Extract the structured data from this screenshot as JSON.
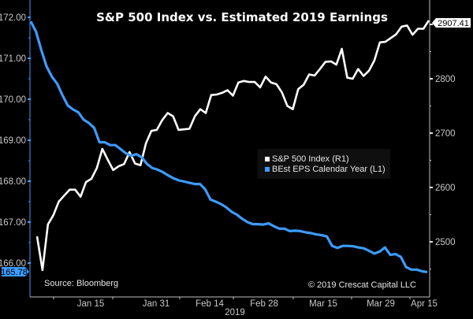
{
  "chart_data": {
    "type": "line",
    "title": "S&P 500 Index vs. Estimated 2019 Earnings",
    "xlabel": "2019",
    "x_ticks": [
      "Jan 15",
      "Jan 31",
      "Feb 14",
      "Feb 28",
      "Mar 15",
      "Mar 29",
      "Apr 15"
    ],
    "left_axis": {
      "ticks": [
        "166.00",
        "167.00",
        "168.00",
        "169.00",
        "170.00",
        "171.00",
        "172.00"
      ],
      "ylim": [
        165.2,
        172.2
      ]
    },
    "right_axis": {
      "ticks": [
        "2500",
        "2600",
        "2700",
        "2800",
        "2900"
      ],
      "ylim": [
        2433,
        2925
      ]
    },
    "legend": {
      "position": "center-right",
      "entries": [
        "S&P 500 Index (R1)",
        "BEst EPS Calendar Year (L1)"
      ]
    },
    "source": "Source: Bloomberg",
    "copyright": "© 2019 Crescat Capital LLC",
    "grid": false,
    "series": [
      {
        "name": "S&P 500 Index (R1)",
        "axis": "right",
        "color": "#ffffff",
        "last_value_label": "2907.41",
        "values": [
          2510,
          2448,
          2532,
          2549,
          2574,
          2585,
          2596,
          2596,
          2583,
          2610,
          2616,
          2636,
          2671,
          2651,
          2632,
          2639,
          2643,
          2665,
          2644,
          2641,
          2681,
          2704,
          2706,
          2724,
          2737,
          2731,
          2706,
          2707,
          2708,
          2731,
          2744,
          2737,
          2770,
          2771,
          2774,
          2779,
          2769,
          2793,
          2796,
          2794,
          2794,
          2784,
          2804,
          2793,
          2790,
          2775,
          2750,
          2744,
          2781,
          2789,
          2808,
          2806,
          2818,
          2831,
          2832,
          2826,
          2855,
          2802,
          2800,
          2818,
          2805,
          2815,
          2834,
          2867,
          2868,
          2875,
          2882,
          2896,
          2898,
          2881,
          2892,
          2892,
          2907.41
        ]
      },
      {
        "name": "BEst EPS Calendar Year (L1)",
        "axis": "left",
        "color": "#3d9bff",
        "last_value_label": "165.78",
        "values": [
          171.9,
          171.65,
          171.2,
          170.8,
          170.55,
          170.38,
          170.1,
          169.85,
          169.75,
          169.68,
          169.5,
          169.42,
          169.3,
          168.95,
          168.95,
          168.88,
          168.88,
          168.78,
          168.68,
          168.62,
          168.66,
          168.58,
          168.42,
          168.32,
          168.28,
          168.22,
          168.14,
          168.07,
          168.02,
          167.99,
          167.96,
          167.93,
          167.93,
          167.8,
          167.55,
          167.5,
          167.44,
          167.36,
          167.25,
          167.18,
          167.08,
          167.0,
          166.95,
          166.95,
          166.94,
          166.97,
          166.9,
          166.84,
          166.84,
          166.78,
          166.79,
          166.78,
          166.75,
          166.73,
          166.7,
          166.68,
          166.65,
          166.42,
          166.37,
          166.42,
          166.42,
          166.41,
          166.38,
          166.36,
          166.3,
          166.23,
          166.28,
          166.38,
          166.2,
          166.22,
          166.15,
          165.9,
          165.84,
          165.84,
          165.8,
          165.78
        ]
      }
    ]
  }
}
